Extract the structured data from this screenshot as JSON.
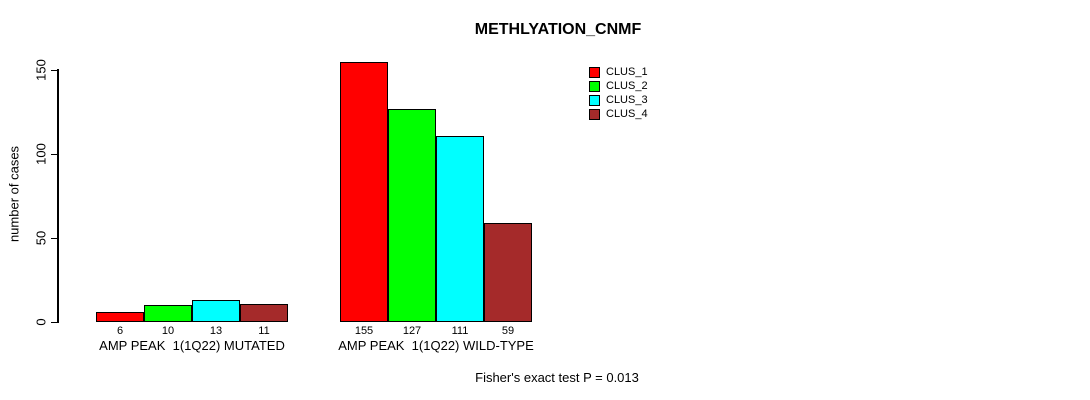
{
  "chart_data": {
    "type": "bar",
    "title": "METHLYATION_CNMF",
    "ylabel": "number of cases",
    "footer": "Fisher's exact test P = 0.013",
    "yticks": [
      0,
      50,
      100,
      150
    ],
    "ylim": [
      0,
      150
    ],
    "grid": false,
    "legend_position": "top-right",
    "series": [
      "CLUS_1",
      "CLUS_2",
      "CLUS_3",
      "CLUS_4"
    ],
    "colors": [
      "#ff0000",
      "#00ff00",
      "#00ffff",
      "#a52a2a"
    ],
    "groups": [
      {
        "label": "AMP PEAK  1(1Q22) MUTATED",
        "values": [
          6,
          10,
          13,
          11
        ]
      },
      {
        "label": "AMP PEAK  1(1Q22) WILD-TYPE",
        "values": [
          155,
          127,
          111,
          59
        ]
      }
    ]
  }
}
